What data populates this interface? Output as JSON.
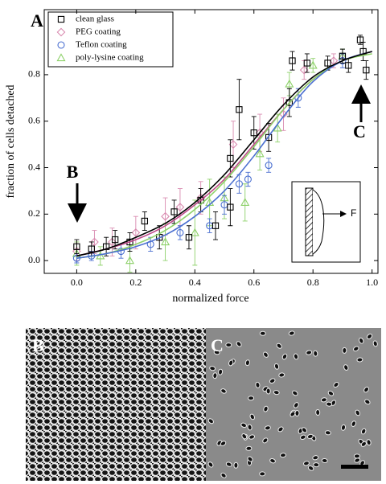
{
  "chart_data": {
    "type": "scatter",
    "xlabel": "normalized force",
    "ylabel": "fraction of cells detached",
    "annotations": [
      "A",
      "B",
      "C",
      "F"
    ],
    "xlim": [
      -0.11,
      1.02
    ],
    "ylim": [
      -0.055,
      1.08
    ],
    "xticks": [
      {
        "value": 0,
        "label": "0.0"
      },
      0.2,
      0.4,
      0.6,
      0.8,
      {
        "value": 1,
        "label": "1.0"
      }
    ],
    "yticks": [
      {
        "value": 0,
        "label": "0.0"
      },
      0.2,
      0.4,
      0.6,
      0.8
    ],
    "fit_x": [
      0,
      0.1,
      0.2,
      0.3,
      0.4,
      0.5,
      0.6,
      0.7,
      0.8,
      0.9,
      1.0
    ],
    "series": [
      {
        "name": "clean glass",
        "color": "#000000",
        "marker": "square",
        "x": [
          0,
          0.05,
          0.1,
          0.13,
          0.18,
          0.23,
          0.28,
          0.33,
          0.38,
          0.42,
          0.47,
          0.52,
          0.55,
          0.52,
          0.6,
          0.65,
          0.72,
          0.73,
          0.78,
          0.85,
          0.9,
          0.92,
          0.96,
          0.97,
          0.98
        ],
        "y": [
          0.06,
          0.05,
          0.06,
          0.09,
          0.08,
          0.17,
          0.1,
          0.21,
          0.1,
          0.26,
          0.15,
          0.44,
          0.65,
          0.23,
          0.55,
          0.53,
          0.68,
          0.86,
          0.85,
          0.85,
          0.88,
          0.84,
          0.95,
          0.9,
          0.82
        ],
        "err": [
          0.03,
          0.03,
          0.04,
          0.04,
          0.04,
          0.04,
          0.05,
          0.05,
          0.05,
          0.05,
          0.06,
          0.08,
          0.13,
          0.08,
          0.07,
          0.06,
          0.06,
          0.04,
          0.04,
          0.03,
          0.03,
          0.03,
          0.02,
          0.04,
          0.04
        ],
        "fit": [
          0.02,
          0.05,
          0.1,
          0.16,
          0.25,
          0.37,
          0.52,
          0.67,
          0.79,
          0.86,
          0.9
        ]
      },
      {
        "name": "PEG coating",
        "color": "#d98bb0",
        "marker": "diamond",
        "x": [
          0,
          0.06,
          0.12,
          0.2,
          0.3,
          0.35,
          0.42,
          0.53,
          0.62,
          0.7,
          0.77,
          0.87
        ],
        "y": [
          0.04,
          0.08,
          0.08,
          0.12,
          0.19,
          0.23,
          0.27,
          0.5,
          0.55,
          0.63,
          0.82,
          0.86
        ],
        "err": [
          0.04,
          0.05,
          0.06,
          0.07,
          0.08,
          0.08,
          0.07,
          0.1,
          0.08,
          0.07,
          0.04,
          0.03
        ],
        "fit": [
          0.02,
          0.05,
          0.09,
          0.15,
          0.24,
          0.35,
          0.5,
          0.65,
          0.78,
          0.86,
          0.9
        ]
      },
      {
        "name": "Teflon coating",
        "color": "#4a6fd0",
        "marker": "circle",
        "x": [
          0,
          0.05,
          0.15,
          0.25,
          0.35,
          0.45,
          0.5,
          0.55,
          0.58,
          0.65,
          0.75,
          0.9
        ],
        "y": [
          0.01,
          0.02,
          0.04,
          0.07,
          0.12,
          0.15,
          0.24,
          0.33,
          0.35,
          0.41,
          0.7,
          0.86
        ],
        "err": [
          0.02,
          0.02,
          0.03,
          0.03,
          0.03,
          0.03,
          0.04,
          0.04,
          0.03,
          0.03,
          0.04,
          0.03
        ],
        "fit": [
          0.01,
          0.03,
          0.06,
          0.11,
          0.19,
          0.3,
          0.45,
          0.62,
          0.77,
          0.86,
          0.9
        ]
      },
      {
        "name": "poly-lysine coating",
        "color": "#8ed16a",
        "marker": "triangle",
        "x": [
          0,
          0.08,
          0.18,
          0.3,
          0.4,
          0.45,
          0.5,
          0.57,
          0.62,
          0.68,
          0.72,
          0.8,
          0.9
        ],
        "y": [
          0.03,
          0.02,
          0.0,
          0.08,
          0.12,
          0.25,
          0.27,
          0.25,
          0.46,
          0.57,
          0.76,
          0.84,
          0.88
        ],
        "err": [
          0.05,
          0.04,
          0.05,
          0.08,
          0.14,
          0.1,
          0.09,
          0.08,
          0.07,
          0.06,
          0.05,
          0.03,
          0.03
        ],
        "fit": [
          0.01,
          0.03,
          0.07,
          0.13,
          0.22,
          0.34,
          0.49,
          0.65,
          0.78,
          0.86,
          0.89
        ]
      }
    ]
  },
  "panels": [
    {
      "label": "B"
    },
    {
      "label": "C"
    }
  ]
}
